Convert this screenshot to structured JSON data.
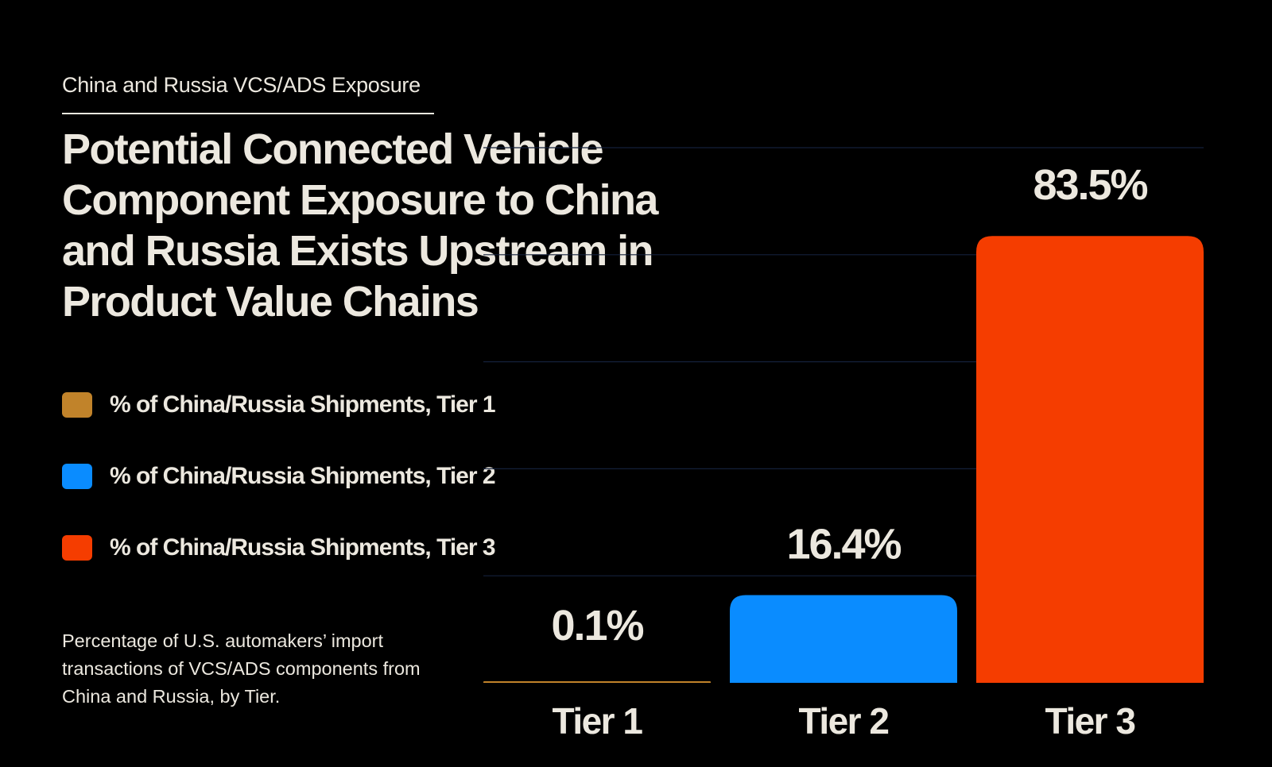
{
  "header": {
    "eyebrow": "China and Russia VCS/ADS Exposure",
    "title": "Potential Connected Vehicle Component Exposure to China and Russia Exists Upstream in Product Value Chains"
  },
  "legend": [
    {
      "label": "% of China/Russia Shipments, Tier 1",
      "color": "#c1832a"
    },
    {
      "label": "% of China/Russia Shipments, Tier 2",
      "color": "#0a8cff"
    },
    {
      "label": "% of China/Russia Shipments, Tier 3",
      "color": "#f53d00"
    }
  ],
  "note": "Percentage of U.S. automakers’ import transactions of VCS/ADS components from China and Russia, by Tier.",
  "chart_data": {
    "type": "bar",
    "categories": [
      "Tier 1",
      "Tier 2",
      "Tier 3"
    ],
    "values": [
      0.1,
      16.4,
      83.5
    ],
    "value_labels": [
      "0.1%",
      "16.4%",
      "83.5%"
    ],
    "colors": [
      "#c1832a",
      "#0a8cff",
      "#f53d00"
    ],
    "ylim": [
      0,
      100
    ],
    "grid": true,
    "title": "",
    "xlabel": "",
    "ylabel": ""
  }
}
